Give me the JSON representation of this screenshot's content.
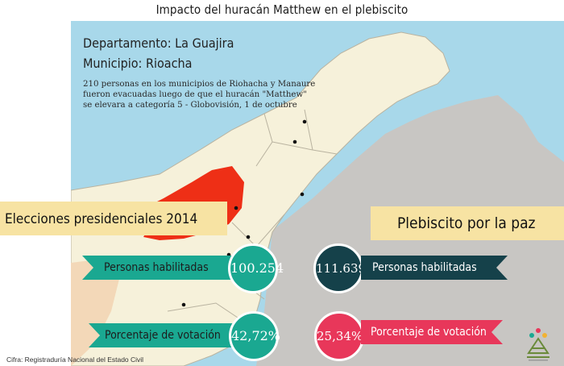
{
  "title": "Impacto del huracán Matthew en el plebiscito",
  "location": {
    "department": "Departamento: La Guajira",
    "municipality": "Municipio: Rioacha"
  },
  "note_lines": [
    "210 personas en los municipios de Riohacha y Manaure",
    "fueron evacuadas luego de que el huracán \"Matthew\"",
    "se elevara a categoría 5 - Globovisión, 1 de octubre"
  ],
  "elections_2014": {
    "heading": "Elecciones presidenciales 2014",
    "eligible_label": "Personas habilitadas",
    "eligible_value": "100.254",
    "turnout_label": "Porcentaje de votación",
    "turnout_value": "42,72%"
  },
  "plebiscite": {
    "heading": "Plebiscito por la paz",
    "eligible_label": "Personas habilitadas",
    "eligible_value": "111.639",
    "turnout_label": "Porcentaje de votación",
    "turnout_value": "25,34%"
  },
  "source": "Cifra: Registraduría Nacional del Estado Civil",
  "colors": {
    "sea": "#a8d8ea",
    "land": "#f6f1da",
    "highlight": "#ee2f16",
    "neighbor_country": "#c8c6c3",
    "teal": "#1aa891",
    "dark_teal": "#15414a",
    "pink": "#e8375a",
    "band": "#f7e3a3"
  },
  "icons": [
    "map-marker-dot",
    "logo-seal"
  ]
}
